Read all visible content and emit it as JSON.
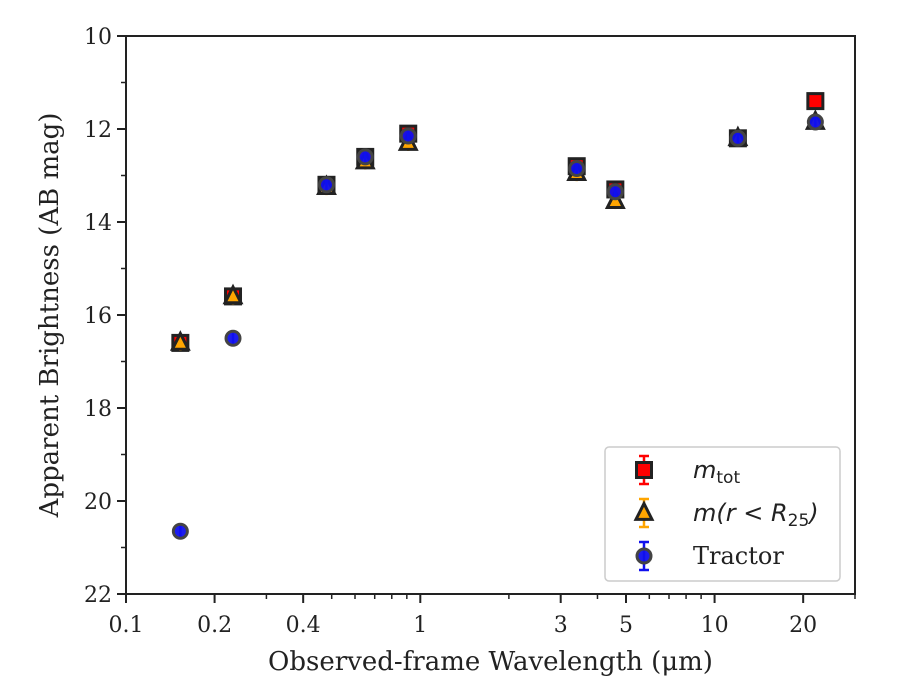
{
  "chart_data": {
    "type": "scatter",
    "title": "",
    "xlabel": "Observed-frame Wavelength (μm)",
    "ylabel": "Apparent Brightness (AB mag)",
    "xscale": "log",
    "xlim": [
      0.1,
      30
    ],
    "ylim": [
      22,
      10
    ],
    "y_inverted": true,
    "grid": false,
    "legend_position": "lower-right",
    "xticks": [
      0.1,
      0.2,
      0.4,
      1,
      3,
      5,
      10,
      20
    ],
    "xtick_labels": [
      "0.1",
      "0.2",
      "0.4",
      "1",
      "3",
      "5",
      "10",
      "20"
    ],
    "yticks": [
      10,
      12,
      14,
      16,
      18,
      20,
      22
    ],
    "ytick_labels": [
      "10",
      "12",
      "14",
      "16",
      "18",
      "20",
      "22"
    ],
    "series": [
      {
        "name": "m_tot",
        "legend_label_base": "m",
        "legend_label_sub": "tot",
        "marker": "square",
        "color": "#ff0000",
        "edge_color": "#222222",
        "points": [
          {
            "x": 0.153,
            "y": 16.6
          },
          {
            "x": 0.231,
            "y": 15.6
          },
          {
            "x": 0.48,
            "y": 13.2
          },
          {
            "x": 0.65,
            "y": 12.6
          },
          {
            "x": 0.91,
            "y": 12.1
          },
          {
            "x": 3.4,
            "y": 12.8
          },
          {
            "x": 4.6,
            "y": 13.3
          },
          {
            "x": 12.0,
            "y": 12.2
          },
          {
            "x": 22.0,
            "y": 11.4
          }
        ]
      },
      {
        "name": "m(r < R25)",
        "legend_label_base": "m(r < R",
        "legend_label_sub": "25",
        "legend_label_tail": ")",
        "marker": "triangle",
        "color": "#ffa500",
        "edge_color": "#222222",
        "points": [
          {
            "x": 0.153,
            "y": 16.6
          },
          {
            "x": 0.231,
            "y": 15.6
          },
          {
            "x": 0.48,
            "y": 13.25
          },
          {
            "x": 0.65,
            "y": 12.7
          },
          {
            "x": 0.91,
            "y": 12.3
          },
          {
            "x": 3.4,
            "y": 12.95
          },
          {
            "x": 4.6,
            "y": 13.55
          },
          {
            "x": 12.0,
            "y": 12.2
          },
          {
            "x": 22.0,
            "y": 11.85
          }
        ]
      },
      {
        "name": "Tractor",
        "marker": "circle",
        "color": "#1010ee",
        "edge_color": "#444444",
        "points": [
          {
            "x": 0.153,
            "y": 20.65
          },
          {
            "x": 0.231,
            "y": 16.5
          },
          {
            "x": 0.48,
            "y": 13.2
          },
          {
            "x": 0.65,
            "y": 12.6
          },
          {
            "x": 0.91,
            "y": 12.15
          },
          {
            "x": 3.4,
            "y": 12.85
          },
          {
            "x": 4.6,
            "y": 13.35
          },
          {
            "x": 12.0,
            "y": 12.2
          },
          {
            "x": 22.0,
            "y": 11.85
          }
        ]
      }
    ]
  }
}
